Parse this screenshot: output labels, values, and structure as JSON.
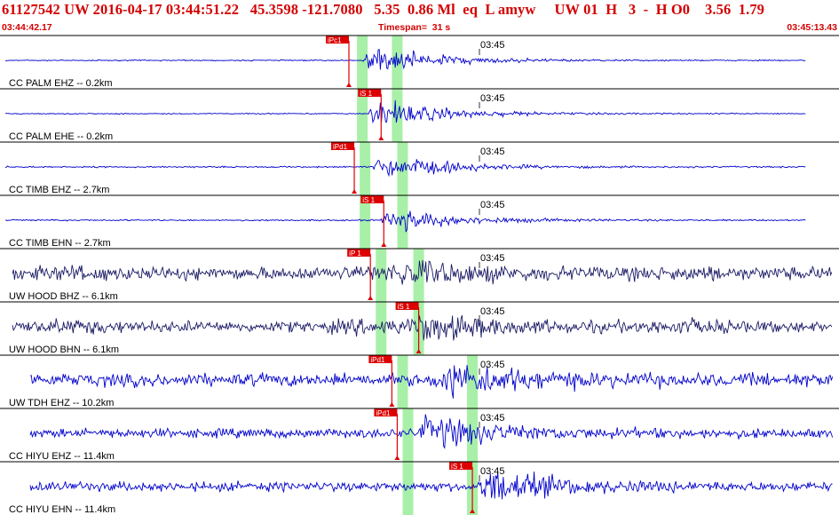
{
  "header": {
    "summary": "61127542 UW 2016-04-17 03:44:51.22   45.3598 -121.7080   5.35  0.86 Ml  eq  L amyw     UW 01  H   3  -  H O0    3.56  1.79",
    "start_time": "03:44:42.17",
    "timespan": "Timespan=  31 s",
    "end_time": "03:45:13.43"
  },
  "colors": {
    "header_text": "#d40000",
    "trace_blue": "#0000cc",
    "trace_dark": "#1a1a66",
    "pick_bg": "#dd0000",
    "window_green": "#a8f0a8",
    "separator": "#000000"
  },
  "tick_label": "03:45",
  "traces": [
    {
      "label": "CC PALM EHZ -- 0.2km",
      "color": "blue",
      "pick": "iPc1",
      "pick_time": 13.0,
      "windows": [
        13.5,
        14.8
      ],
      "onset": 13.5,
      "noise": 0.03,
      "amp": 0.9
    },
    {
      "label": "CC PALM EHE -- 0.2km",
      "color": "blue",
      "pick": "iS 1",
      "pick_time": 14.2,
      "windows": [
        13.5,
        14.8
      ],
      "onset": 13.7,
      "noise": 0.03,
      "amp": 0.9
    },
    {
      "label": "CC TIMB EHZ -- 2.7km",
      "color": "blue",
      "pick": "iPd1",
      "pick_time": 13.2,
      "windows": [
        13.6,
        15.0
      ],
      "onset": 13.9,
      "noise": 0.04,
      "amp": 0.8
    },
    {
      "label": "CC TIMB EHN -- 2.7km",
      "color": "blue",
      "pick": "iS 1",
      "pick_time": 14.3,
      "windows": [
        13.6,
        15.0
      ],
      "onset": 14.2,
      "noise": 0.04,
      "amp": 0.75
    },
    {
      "label": "UW HOOD BHZ -- 6.1km",
      "color": "dark",
      "pick": "iP 1",
      "pick_time": 13.8,
      "windows": [
        14.2,
        15.6
      ],
      "onset": 14.5,
      "noise": 0.35,
      "amp": 0.7
    },
    {
      "label": "UW HOOD BHN -- 6.1km",
      "color": "dark",
      "pick": "iS 1",
      "pick_time": 15.6,
      "windows": [
        14.2,
        15.6
      ],
      "onset": 15.2,
      "noise": 0.3,
      "amp": 0.8
    },
    {
      "label": "UW TDH EHZ -- 10.2km",
      "color": "blue",
      "pick": "iPd1",
      "pick_time": 14.6,
      "windows": [
        15.0,
        17.6
      ],
      "onset": 16.2,
      "noise": 0.35,
      "amp": 1.0
    },
    {
      "label": "CC HIYU EHZ -- 11.4km",
      "color": "blue",
      "pick": "iPd1",
      "pick_time": 14.8,
      "windows": [
        15.2,
        17.6
      ],
      "onset": 15.6,
      "noise": 0.25,
      "amp": 0.95
    },
    {
      "label": "CC HIYU EHN -- 11.4km",
      "color": "blue",
      "pick": "iS 1",
      "pick_time": 17.6,
      "windows": [
        15.2,
        17.6
      ],
      "onset": 17.8,
      "noise": 0.25,
      "amp": 1.0
    }
  ]
}
